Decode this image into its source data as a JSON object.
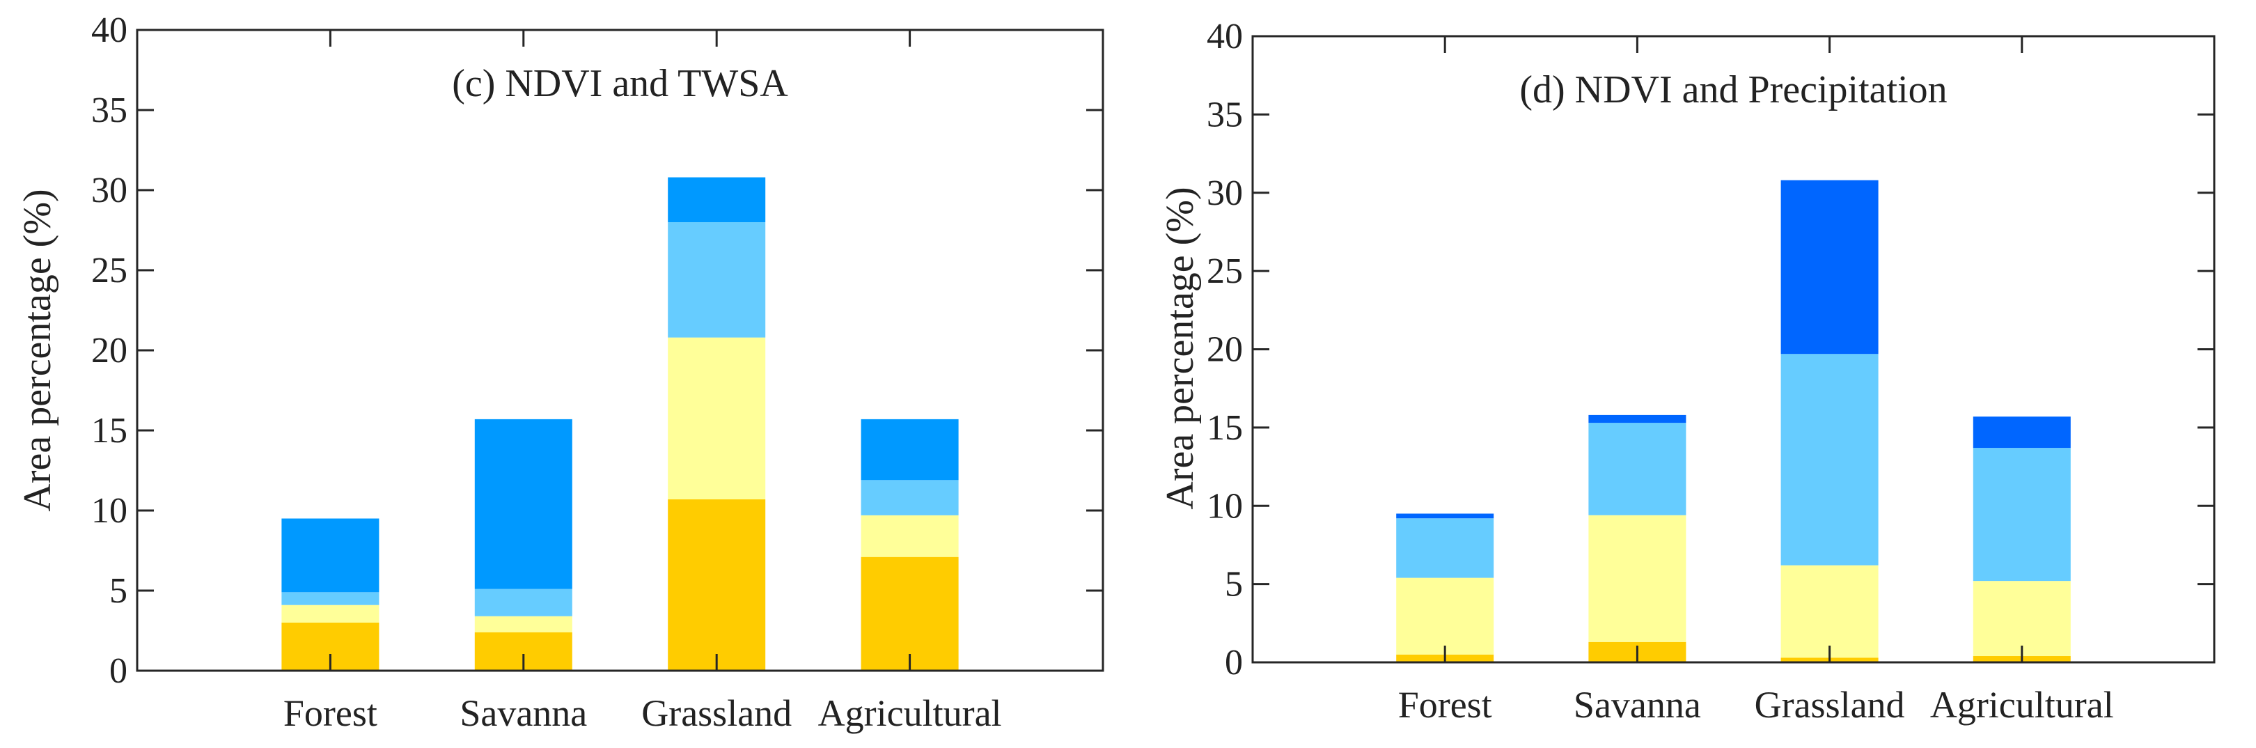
{
  "chart_data": [
    {
      "type": "bar",
      "stacked": true,
      "title": "(c) NDVI and TWSA",
      "xlabel": "",
      "ylabel": "Area percentage (%)",
      "ylim": [
        0,
        40
      ],
      "yticks": [
        0,
        5,
        10,
        15,
        20,
        25,
        30,
        35,
        40
      ],
      "categories": [
        "Forest",
        "Savanna",
        "Grassland",
        "Agricultural"
      ],
      "series": [
        {
          "name": "segment-1",
          "color": "#ffcc00",
          "values": [
            3.0,
            2.4,
            10.7,
            7.1
          ]
        },
        {
          "name": "segment-2",
          "color": "#ffff99",
          "values": [
            1.1,
            1.0,
            10.1,
            2.6
          ]
        },
        {
          "name": "segment-3",
          "color": "#66ccff",
          "values": [
            0.8,
            1.7,
            7.2,
            2.2
          ]
        },
        {
          "name": "segment-4",
          "color": "#0099ff",
          "values": [
            4.6,
            10.6,
            2.8,
            3.8
          ]
        }
      ]
    },
    {
      "type": "bar",
      "stacked": true,
      "title": "(d) NDVI and Precipitation",
      "xlabel": "",
      "ylabel": "Area percentage (%)",
      "ylim": [
        0,
        40
      ],
      "yticks": [
        0,
        5,
        10,
        15,
        20,
        25,
        30,
        35,
        40
      ],
      "categories": [
        "Forest",
        "Savanna",
        "Grassland",
        "Agricultural"
      ],
      "series": [
        {
          "name": "segment-1",
          "color": "#ffcc00",
          "values": [
            0.5,
            1.3,
            0.3,
            0.4
          ]
        },
        {
          "name": "segment-2",
          "color": "#ffff99",
          "values": [
            4.9,
            8.1,
            5.9,
            4.8
          ]
        },
        {
          "name": "segment-3",
          "color": "#66ccff",
          "values": [
            3.8,
            5.9,
            13.5,
            8.5
          ]
        },
        {
          "name": "segment-4",
          "color": "#0066ff",
          "values": [
            0.3,
            0.5,
            11.1,
            2.0
          ]
        }
      ]
    }
  ]
}
